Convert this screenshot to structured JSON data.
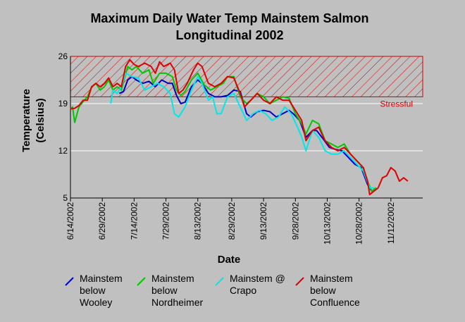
{
  "chart_data": {
    "type": "line",
    "title": "Maximum Daily Water Temp Mainstem Salmon",
    "subtitle": "Longitudinal 2002",
    "xlabel": "Date",
    "ylabel": "Temperature",
    "ylabel_units": "(Celsius)",
    "ylim": [
      5,
      26
    ],
    "y_ticks": [
      5,
      12,
      19,
      26
    ],
    "xlim": [
      "2002-06-14",
      "2002-11-27"
    ],
    "x_ticks": [
      "6/14/2002",
      "6/29/2002",
      "7/14/2002",
      "7/29/2002",
      "8/13/2002",
      "8/29/2002",
      "9/13/2002",
      "9/28/2002",
      "10/13/2002",
      "10/28/2002",
      "11/12/2002"
    ],
    "x_tick_dates": [
      "2002-06-14",
      "2002-06-29",
      "2002-07-14",
      "2002-07-29",
      "2002-08-13",
      "2002-08-29",
      "2002-09-13",
      "2002-09-28",
      "2002-10-13",
      "2002-10-28",
      "2002-11-12"
    ],
    "grid": "horizontal",
    "threshold": {
      "label": "Stressful",
      "from": 20,
      "to": 26,
      "color": "#d10000",
      "pattern": "diagonal-hatch"
    },
    "series": [
      {
        "name": "Mainstem below Wooley",
        "color": "#0000c8",
        "points": [
          [
            "2002-07-07",
            20.5
          ],
          [
            "2002-07-09",
            20.8
          ],
          [
            "2002-07-11",
            22.5
          ],
          [
            "2002-07-13",
            23.0
          ],
          [
            "2002-07-15",
            22.5
          ],
          [
            "2002-07-18",
            22.0
          ],
          [
            "2002-07-21",
            22.3
          ],
          [
            "2002-07-24",
            21.5
          ],
          [
            "2002-07-27",
            22.5
          ],
          [
            "2002-07-30",
            22.0
          ],
          [
            "2002-08-01",
            22.0
          ],
          [
            "2002-08-03",
            20.2
          ],
          [
            "2002-08-05",
            19.0
          ],
          [
            "2002-08-07",
            19.2
          ],
          [
            "2002-08-10",
            21.5
          ],
          [
            "2002-08-13",
            22.5
          ],
          [
            "2002-08-15",
            22.0
          ],
          [
            "2002-08-18",
            20.5
          ],
          [
            "2002-08-21",
            20.0
          ],
          [
            "2002-08-24",
            20.0
          ],
          [
            "2002-08-27",
            20.2
          ],
          [
            "2002-08-30",
            21.0
          ],
          [
            "2002-09-02",
            20.8
          ],
          [
            "2002-09-05",
            17.5
          ],
          [
            "2002-09-07",
            17.0
          ],
          [
            "2002-09-10",
            17.8
          ],
          [
            "2002-09-13",
            18.0
          ],
          [
            "2002-09-16",
            17.8
          ],
          [
            "2002-09-19",
            17.0
          ],
          [
            "2002-09-22",
            17.5
          ],
          [
            "2002-09-25",
            18.0
          ],
          [
            "2002-09-27",
            17.5
          ],
          [
            "2002-09-30",
            16.5
          ],
          [
            "2002-10-03",
            14.0
          ],
          [
            "2002-10-06",
            15.0
          ],
          [
            "2002-10-08",
            15.0
          ],
          [
            "2002-10-11",
            13.8
          ],
          [
            "2002-10-14",
            12.5
          ],
          [
            "2002-10-17",
            12.2
          ],
          [
            "2002-10-20",
            12.0
          ],
          [
            "2002-10-23",
            11.0
          ],
          [
            "2002-10-26",
            10.0
          ],
          [
            "2002-10-29",
            9.5
          ],
          [
            "2002-11-01",
            7.0
          ],
          [
            "2002-11-03",
            6.0
          ],
          [
            "2002-11-05",
            6.5
          ]
        ]
      },
      {
        "name": "Mainstem below Nordheimer",
        "color": "#00c800",
        "points": [
          [
            "2002-06-14",
            18.2
          ],
          [
            "2002-06-15",
            18.5
          ],
          [
            "2002-06-16",
            16.2
          ],
          [
            "2002-06-18",
            18.5
          ],
          [
            "2002-06-20",
            19.3
          ],
          [
            "2002-06-22",
            20.0
          ],
          [
            "2002-06-24",
            21.5
          ],
          [
            "2002-06-26",
            22.0
          ],
          [
            "2002-06-28",
            21.0
          ],
          [
            "2002-06-30",
            21.5
          ],
          [
            "2002-07-02",
            22.5
          ],
          [
            "2002-07-04",
            21.0
          ],
          [
            "2002-07-06",
            21.5
          ],
          [
            "2002-07-08",
            21.0
          ],
          [
            "2002-07-11",
            24.5
          ],
          [
            "2002-07-13",
            24.0
          ],
          [
            "2002-07-15",
            24.5
          ],
          [
            "2002-07-18",
            23.5
          ],
          [
            "2002-07-21",
            24.0
          ],
          [
            "2002-07-23",
            22.0
          ],
          [
            "2002-07-26",
            23.5
          ],
          [
            "2002-07-29",
            23.5
          ],
          [
            "2002-08-01",
            23.0
          ],
          [
            "2002-08-03",
            21.0
          ],
          [
            "2002-08-05",
            20.2
          ],
          [
            "2002-08-07",
            20.8
          ],
          [
            "2002-08-10",
            22.5
          ],
          [
            "2002-08-13",
            23.5
          ],
          [
            "2002-08-16",
            21.8
          ],
          [
            "2002-08-19",
            21.0
          ],
          [
            "2002-08-22",
            21.5
          ],
          [
            "2002-08-25",
            22.0
          ],
          [
            "2002-08-27",
            23.0
          ],
          [
            "2002-08-30",
            23.0
          ],
          [
            "2002-09-02",
            20.0
          ],
          [
            "2002-09-05",
            19.0
          ],
          [
            "2002-09-07",
            19.5
          ],
          [
            "2002-09-10",
            20.5
          ],
          [
            "2002-09-13",
            20.0
          ],
          [
            "2002-09-16",
            19.0
          ],
          [
            "2002-09-19",
            19.5
          ],
          [
            "2002-09-22",
            20.0
          ],
          [
            "2002-09-25",
            19.8
          ],
          [
            "2002-09-28",
            17.5
          ],
          [
            "2002-10-01",
            16.0
          ],
          [
            "2002-10-03",
            14.5
          ],
          [
            "2002-10-06",
            16.5
          ],
          [
            "2002-10-09",
            16.0
          ],
          [
            "2002-10-12",
            13.5
          ],
          [
            "2002-10-15",
            13.0
          ],
          [
            "2002-10-18",
            12.5
          ],
          [
            "2002-10-21",
            13.0
          ],
          [
            "2002-10-24",
            11.5
          ],
          [
            "2002-10-27",
            10.5
          ],
          [
            "2002-10-30",
            9.5
          ],
          [
            "2002-11-01",
            7.5
          ],
          [
            "2002-11-03",
            6.0
          ],
          [
            "2002-11-05",
            6.5
          ]
        ]
      },
      {
        "name": "Mainstem @ Crapo",
        "color": "#00e8e8",
        "points": [
          [
            "2002-07-03",
            19.0
          ],
          [
            "2002-07-04",
            21.0
          ],
          [
            "2002-07-06",
            20.5
          ],
          [
            "2002-07-08",
            21.5
          ],
          [
            "2002-07-10",
            23.5
          ],
          [
            "2002-07-13",
            23.0
          ],
          [
            "2002-07-16",
            22.8
          ],
          [
            "2002-07-19",
            21.0
          ],
          [
            "2002-07-22",
            21.5
          ],
          [
            "2002-07-25",
            22.0
          ],
          [
            "2002-07-28",
            21.5
          ],
          [
            "2002-07-31",
            20.5
          ],
          [
            "2002-08-02",
            17.5
          ],
          [
            "2002-08-04",
            17.0
          ],
          [
            "2002-08-07",
            18.5
          ],
          [
            "2002-08-10",
            21.0
          ],
          [
            "2002-08-13",
            23.0
          ],
          [
            "2002-08-15",
            22.0
          ],
          [
            "2002-08-18",
            19.5
          ],
          [
            "2002-08-20",
            20.0
          ],
          [
            "2002-08-22",
            17.5
          ],
          [
            "2002-08-24",
            17.5
          ],
          [
            "2002-08-27",
            20.0
          ],
          [
            "2002-08-30",
            20.5
          ],
          [
            "2002-09-02",
            18.5
          ],
          [
            "2002-09-05",
            16.5
          ],
          [
            "2002-09-08",
            17.5
          ],
          [
            "2002-09-11",
            18.0
          ],
          [
            "2002-09-14",
            17.5
          ],
          [
            "2002-09-17",
            16.5
          ],
          [
            "2002-09-20",
            17.0
          ],
          [
            "2002-09-23",
            18.5
          ],
          [
            "2002-09-26",
            17.5
          ],
          [
            "2002-09-29",
            15.5
          ],
          [
            "2002-10-01",
            14.0
          ],
          [
            "2002-10-03",
            12.0
          ],
          [
            "2002-10-06",
            15.0
          ],
          [
            "2002-10-09",
            14.0
          ],
          [
            "2002-10-12",
            12.0
          ],
          [
            "2002-10-15",
            11.5
          ],
          [
            "2002-10-18",
            11.5
          ],
          [
            "2002-10-21",
            12.0
          ],
          [
            "2002-10-24",
            11.0
          ],
          [
            "2002-10-27",
            10.0
          ],
          [
            "2002-10-30",
            9.0
          ],
          [
            "2002-11-02",
            6.5
          ],
          [
            "2002-11-04",
            6.5
          ]
        ]
      },
      {
        "name": "Mainstem below Confluence",
        "color": "#e00000",
        "points": [
          [
            "2002-06-14",
            18.2
          ],
          [
            "2002-06-16",
            18.3
          ],
          [
            "2002-06-18",
            18.7
          ],
          [
            "2002-06-20",
            19.5
          ],
          [
            "2002-06-22",
            19.5
          ],
          [
            "2002-06-24",
            21.5
          ],
          [
            "2002-06-26",
            22.0
          ],
          [
            "2002-06-28",
            21.5
          ],
          [
            "2002-06-30",
            22.0
          ],
          [
            "2002-07-02",
            22.8
          ],
          [
            "2002-07-04",
            21.5
          ],
          [
            "2002-07-06",
            22.0
          ],
          [
            "2002-07-08",
            21.5
          ],
          [
            "2002-07-10",
            24.5
          ],
          [
            "2002-07-12",
            25.5
          ],
          [
            "2002-07-14",
            24.8
          ],
          [
            "2002-07-16",
            24.5
          ],
          [
            "2002-07-19",
            25.0
          ],
          [
            "2002-07-22",
            24.5
          ],
          [
            "2002-07-24",
            23.5
          ],
          [
            "2002-07-26",
            25.2
          ],
          [
            "2002-07-28",
            24.5
          ],
          [
            "2002-07-31",
            25.0
          ],
          [
            "2002-08-02",
            24.0
          ],
          [
            "2002-08-04",
            20.5
          ],
          [
            "2002-08-06",
            21.0
          ],
          [
            "2002-08-08",
            22.0
          ],
          [
            "2002-08-11",
            24.0
          ],
          [
            "2002-08-13",
            25.0
          ],
          [
            "2002-08-15",
            24.5
          ],
          [
            "2002-08-18",
            22.0
          ],
          [
            "2002-08-21",
            21.5
          ],
          [
            "2002-08-24",
            22.0
          ],
          [
            "2002-08-27",
            23.0
          ],
          [
            "2002-08-30",
            22.8
          ],
          [
            "2002-09-02",
            20.5
          ],
          [
            "2002-09-04",
            18.5
          ],
          [
            "2002-09-07",
            19.5
          ],
          [
            "2002-09-10",
            20.5
          ],
          [
            "2002-09-13",
            19.5
          ],
          [
            "2002-09-16",
            19.0
          ],
          [
            "2002-09-19",
            20.0
          ],
          [
            "2002-09-22",
            19.5
          ],
          [
            "2002-09-25",
            19.5
          ],
          [
            "2002-09-28",
            18.0
          ],
          [
            "2002-10-01",
            16.5
          ],
          [
            "2002-10-03",
            13.5
          ],
          [
            "2002-10-06",
            15.0
          ],
          [
            "2002-10-09",
            15.5
          ],
          [
            "2002-10-12",
            13.5
          ],
          [
            "2002-10-15",
            12.5
          ],
          [
            "2002-10-18",
            12.0
          ],
          [
            "2002-10-21",
            12.5
          ],
          [
            "2002-10-24",
            11.5
          ],
          [
            "2002-10-27",
            10.5
          ],
          [
            "2002-10-30",
            9.5
          ],
          [
            "2002-11-01",
            7.5
          ],
          [
            "2002-11-02",
            5.5
          ],
          [
            "2002-11-04",
            6.0
          ],
          [
            "2002-11-06",
            6.5
          ],
          [
            "2002-11-08",
            8.0
          ],
          [
            "2002-11-10",
            8.3
          ],
          [
            "2002-11-12",
            9.5
          ],
          [
            "2002-11-14",
            9.0
          ],
          [
            "2002-11-16",
            7.5
          ],
          [
            "2002-11-18",
            8.0
          ],
          [
            "2002-11-20",
            7.5
          ]
        ]
      }
    ],
    "legend": {
      "placement": "bottom",
      "entries": [
        {
          "lines": [
            "Mainstem",
            "below",
            "Wooley"
          ],
          "color": "#0000c8"
        },
        {
          "lines": [
            "Mainstem",
            "below",
            "Nordheimer"
          ],
          "color": "#00c800"
        },
        {
          "lines": [
            "Mainstem @",
            "Crapo"
          ],
          "color": "#00e8e8"
        },
        {
          "lines": [
            "Mainstem",
            "below",
            "Confluence"
          ],
          "color": "#e00000"
        }
      ]
    }
  }
}
